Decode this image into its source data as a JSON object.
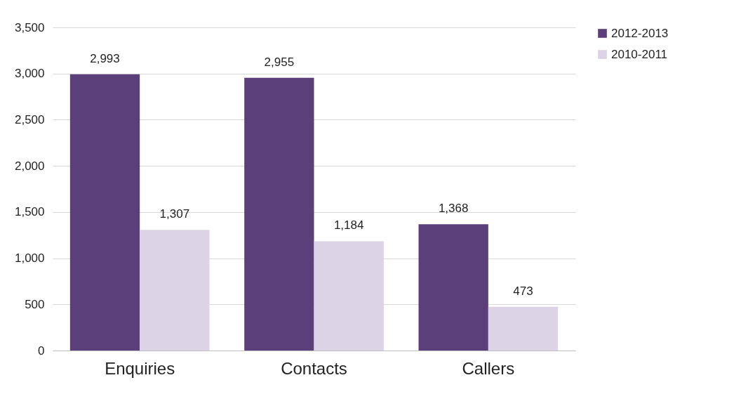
{
  "chart_data": {
    "type": "bar",
    "categories": [
      "Enquiries",
      "Contacts",
      "Callers"
    ],
    "series": [
      {
        "name": "2012-2013",
        "color": "#5b3f7b",
        "values": [
          2993,
          2955,
          1368
        ],
        "value_labels": [
          "2,993",
          "2,955",
          "1,368"
        ]
      },
      {
        "name": "2010-2011",
        "color": "#dcd3e6",
        "values": [
          1307,
          1184,
          473
        ],
        "value_labels": [
          "1,307",
          "1,184",
          "473"
        ]
      }
    ],
    "ylim": [
      0,
      3500
    ],
    "yticks": [
      0,
      {
        "value": 500,
        "label": "500"
      },
      {
        "value": 1000,
        "label": "1,000"
      },
      {
        "value": 1500,
        "label": "1,500"
      },
      {
        "value": 2000,
        "label": "2,000"
      },
      {
        "value": 2500,
        "label": "2,500"
      },
      {
        "value": 3000,
        "label": "3,000"
      },
      {
        "value": 3500,
        "label": "3,500"
      }
    ],
    "grid": "y",
    "legend": "right"
  }
}
